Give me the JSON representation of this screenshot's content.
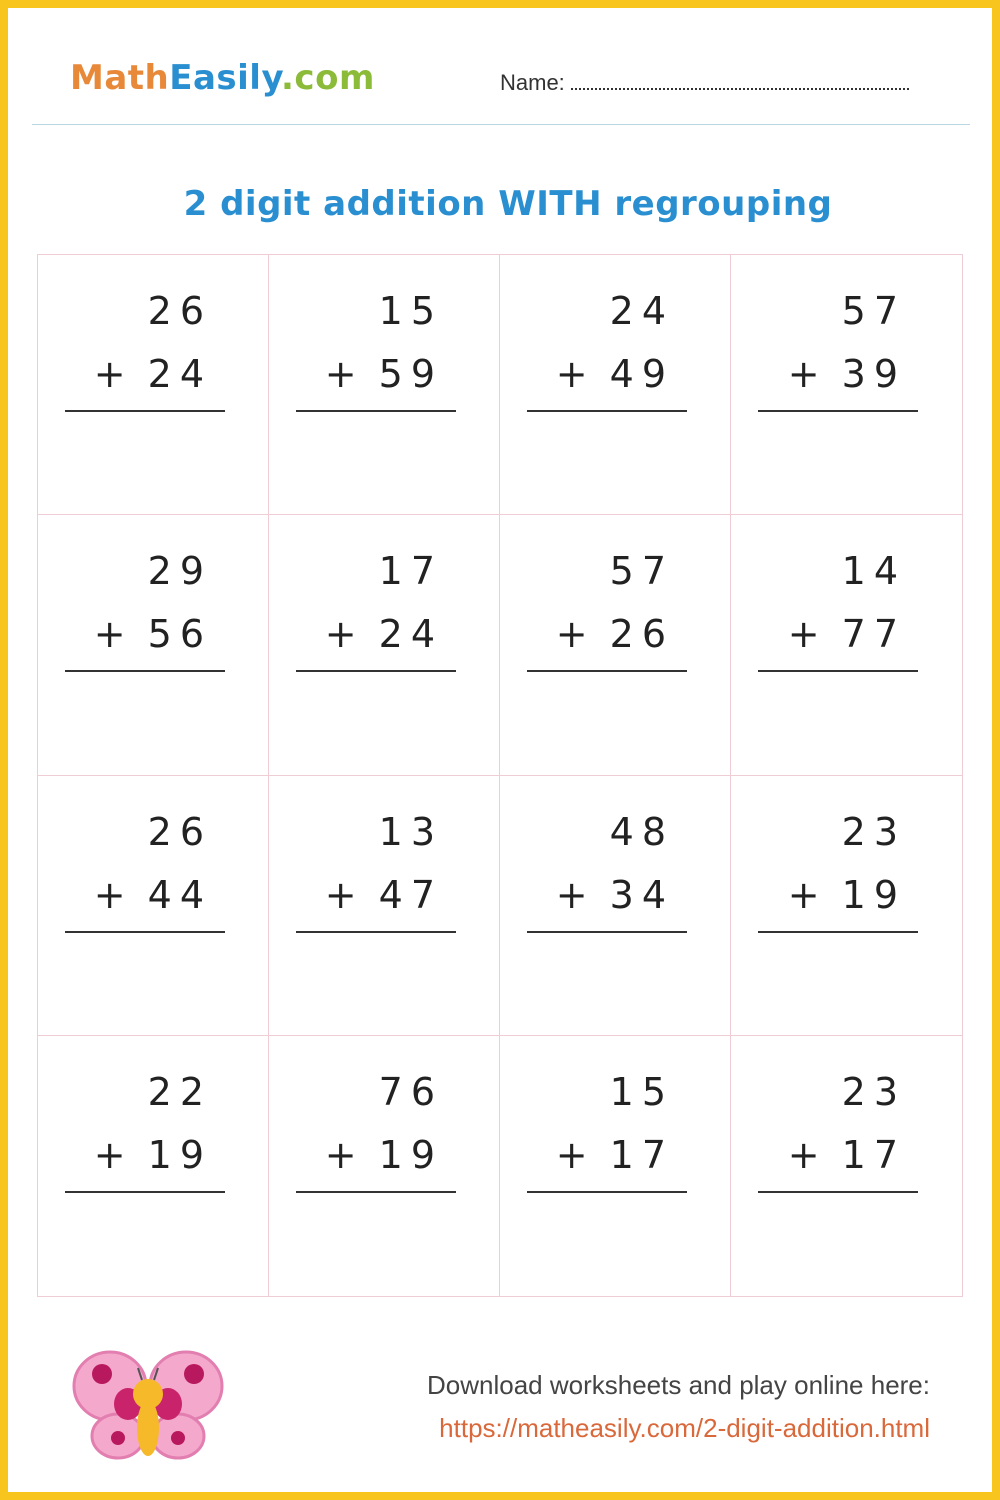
{
  "header": {
    "logo": {
      "part1": "Math",
      "part2": "Easily",
      "part3": ".com"
    },
    "name_label": "Name:"
  },
  "title": "2 digit addition WITH regrouping",
  "problems": [
    {
      "top": "26",
      "bottom": "24"
    },
    {
      "top": "15",
      "bottom": "59"
    },
    {
      "top": "24",
      "bottom": "49"
    },
    {
      "top": "57",
      "bottom": "39"
    },
    {
      "top": "29",
      "bottom": "56"
    },
    {
      "top": "17",
      "bottom": "24"
    },
    {
      "top": "57",
      "bottom": "26"
    },
    {
      "top": "14",
      "bottom": "77"
    },
    {
      "top": "26",
      "bottom": "44"
    },
    {
      "top": "13",
      "bottom": "47"
    },
    {
      "top": "48",
      "bottom": "34"
    },
    {
      "top": "23",
      "bottom": "19"
    },
    {
      "top": "22",
      "bottom": "19"
    },
    {
      "top": "76",
      "bottom": "19"
    },
    {
      "top": "15",
      "bottom": "17"
    },
    {
      "top": "23",
      "bottom": "17"
    }
  ],
  "operator": "+",
  "footer": {
    "text": "Download worksheets and play online here:",
    "link": "https://matheasily.com/2-digit-addition.html"
  },
  "colors": {
    "border": "#f7c51e",
    "title": "#2a8fd0",
    "link": "#d9683a"
  }
}
